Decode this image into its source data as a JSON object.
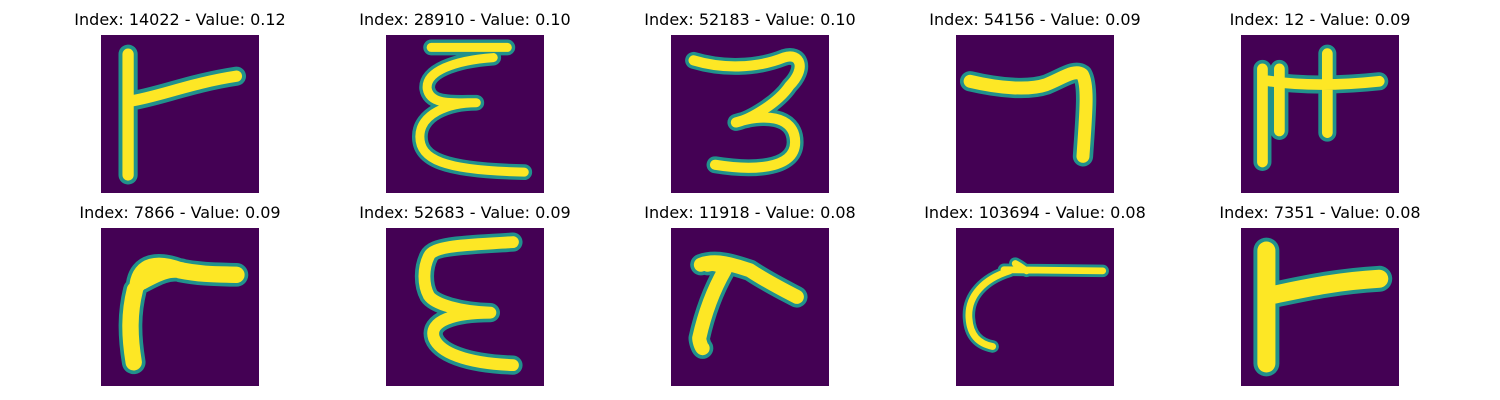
{
  "colors": {
    "background": "#440154",
    "stroke": "#fde725",
    "edge": "#21918c"
  },
  "panels": [
    {
      "title": "Index: 14022 - Value: 0.12",
      "glyph": "f-shape"
    },
    {
      "title": "Index: 28910 - Value: 0.10",
      "glyph": "epsilon-loops"
    },
    {
      "title": "Index: 52183 - Value: 0.10",
      "glyph": "three"
    },
    {
      "title": "Index: 54156 - Value: 0.09",
      "glyph": "seven-hook"
    },
    {
      "title": "Index: 12 - Value: 0.09",
      "glyph": "double-stem"
    },
    {
      "title": "Index: 7866 - Value: 0.09",
      "glyph": "bent-f"
    },
    {
      "title": "Index: 52683 - Value: 0.09",
      "glyph": "epsilon"
    },
    {
      "title": "Index: 11918 - Value: 0.08",
      "glyph": "bent-f-small"
    },
    {
      "title": "Index: 103694 - Value: 0.08",
      "glyph": "hook-c"
    },
    {
      "title": "Index: 7351 - Value: 0.08",
      "glyph": "thick-f"
    }
  ]
}
